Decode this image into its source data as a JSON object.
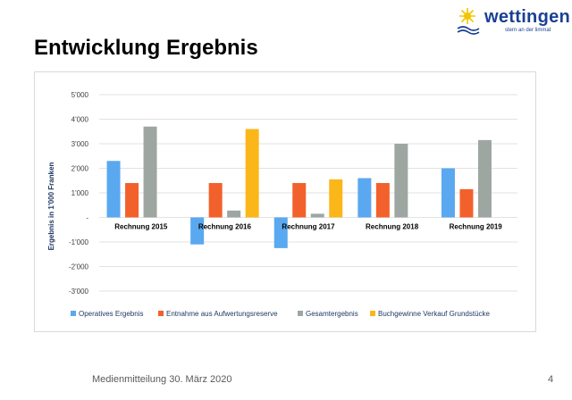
{
  "logo": {
    "name": "wettingen",
    "tagline": "stern an der limmat"
  },
  "slide": {
    "title": "Entwicklung Ergebnis",
    "footer": "Medienmitteilung 30. März 2020",
    "page_number": "4"
  },
  "colors": {
    "operatives": "#5aa8f0",
    "entnahme": "#f2612c",
    "gesamt": "#9ea6a2",
    "buchgewinne": "#fbb619",
    "logo_blue": "#1b3f94",
    "logo_sun": "#f5c400"
  },
  "chart_data": {
    "type": "bar",
    "title": "",
    "xlabel": "",
    "ylabel": "Ergebnis in 1'000 Franken",
    "ylim": [
      -3000,
      5000
    ],
    "yticks": [
      5000,
      4000,
      3000,
      2000,
      1000,
      0,
      -1000,
      -2000,
      -3000
    ],
    "ytick_labels": [
      "5'000",
      "4'000",
      "3'000",
      "2'000",
      "1'000",
      "-",
      "-1'000",
      "-2'000",
      "-3'000"
    ],
    "grid": true,
    "legend_position": "bottom",
    "categories": [
      "Rechnung 2015",
      "Rechnung 2016",
      "Rechnung 2017",
      "Rechnung 2018",
      "Rechnung 2019"
    ],
    "series": [
      {
        "name": "Operatives Ergebnis",
        "color": "#5aa8f0",
        "values": [
          2300,
          -1100,
          -1250,
          1600,
          2000
        ]
      },
      {
        "name": "Entnahme aus Aufwertungsreserve",
        "color": "#f2612c",
        "values": [
          1400,
          1400,
          1400,
          1400,
          1150
        ]
      },
      {
        "name": "Gesamtergebnis",
        "color": "#9ea6a2",
        "values": [
          3700,
          280,
          150,
          3000,
          3150
        ]
      },
      {
        "name": "Buchgewinne Verkauf Grundstücke",
        "color": "#fbb619",
        "values": [
          0,
          3600,
          1550,
          0,
          0
        ]
      }
    ]
  }
}
